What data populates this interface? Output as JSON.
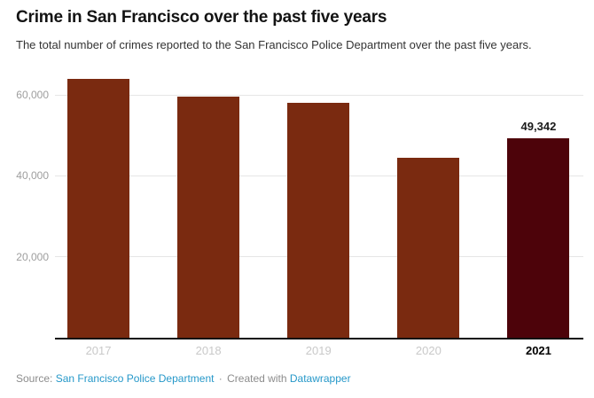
{
  "header": {
    "title": "Crime in San Francisco over the past five years",
    "subtitle": "The total number of crimes reported to the San Francisco Police Department over the past five years."
  },
  "chart_data": {
    "type": "bar",
    "title": "Crime in San Francisco over the past five years",
    "categories": [
      "2017",
      "2018",
      "2019",
      "2020",
      "2021"
    ],
    "values": [
      63950,
      59550,
      58000,
      44400,
      49342
    ],
    "value_labels": [
      null,
      null,
      null,
      null,
      "49,342"
    ],
    "highlight_index": 4,
    "ylim": [
      0,
      65000
    ],
    "yticks": [
      {
        "value": 20000,
        "label": "20,000"
      },
      {
        "value": 40000,
        "label": "40,000"
      },
      {
        "value": 60000,
        "label": "60,000"
      }
    ],
    "grid": true,
    "legend": "none",
    "xlabel": "",
    "ylabel": "",
    "colors": {
      "bar": "#7a2a10",
      "bar_highlight": "#4d030a",
      "gridline": "#e6e6e6",
      "baseline": "#111111",
      "ytick_label": "#9e9e9e",
      "xtick_label": "#c9c9c9",
      "xtick_label_highlight": "#000000"
    }
  },
  "footer": {
    "source_label": "Source:",
    "source_link": "San Francisco Police Department",
    "separator": "·",
    "created_with_label": "Created with",
    "created_with_link": "Datawrapper",
    "link_color": "#2698c9"
  }
}
